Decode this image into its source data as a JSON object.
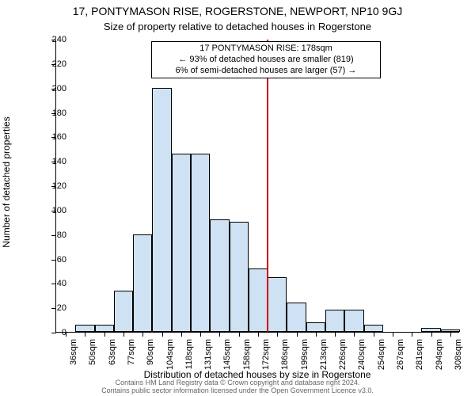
{
  "title": "17, PONTYMASON RISE, ROGERSTONE, NEWPORT, NP10 9GJ",
  "subtitle": "Size of property relative to detached houses in Rogerstone",
  "chart": {
    "type": "histogram",
    "ylabel": "Number of detached properties",
    "xlabel": "Distribution of detached houses by size in Rogerstone",
    "ylim": [
      0,
      240
    ],
    "ytick_step": 20,
    "background_color": "#ffffff",
    "axis_color": "#000000",
    "bar_fill": "#cfe2f3",
    "bar_border": "#000000",
    "marker_value_sqm": 178,
    "marker_color": "#cc0000",
    "bins": [
      {
        "label": "36sqm",
        "count": 0
      },
      {
        "label": "50sqm",
        "count": 6
      },
      {
        "label": "63sqm",
        "count": 6
      },
      {
        "label": "77sqm",
        "count": 34
      },
      {
        "label": "90sqm",
        "count": 80
      },
      {
        "label": "104sqm",
        "count": 200
      },
      {
        "label": "118sqm",
        "count": 146
      },
      {
        "label": "131sqm",
        "count": 146
      },
      {
        "label": "145sqm",
        "count": 92
      },
      {
        "label": "158sqm",
        "count": 90
      },
      {
        "label": "172sqm",
        "count": 52
      },
      {
        "label": "186sqm",
        "count": 45
      },
      {
        "label": "199sqm",
        "count": 24
      },
      {
        "label": "213sqm",
        "count": 8
      },
      {
        "label": "226sqm",
        "count": 18
      },
      {
        "label": "240sqm",
        "count": 18
      },
      {
        "label": "254sqm",
        "count": 6
      },
      {
        "label": "267sqm",
        "count": 0
      },
      {
        "label": "281sqm",
        "count": 0
      },
      {
        "label": "294sqm",
        "count": 3
      },
      {
        "label": "308sqm",
        "count": 2
      }
    ],
    "annotation": {
      "line1": "17 PONTYMASON RISE: 178sqm",
      "line2": "← 93% of detached houses are smaller (819)",
      "line3": "6% of semi-detached houses are larger (57) →"
    }
  },
  "footer": {
    "line1": "Contains HM Land Registry data © Crown copyright and database right 2024.",
    "line2": "Contains public sector information licensed under the Open Government Licence v3.0."
  }
}
